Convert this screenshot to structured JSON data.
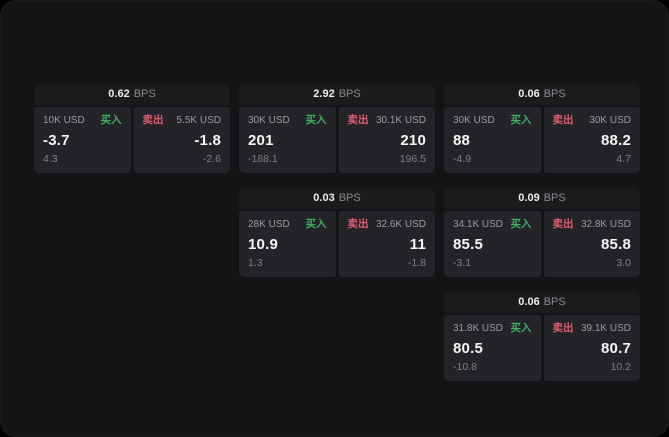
{
  "page": {
    "bps_unit": "BPS"
  },
  "labels": {
    "buy": "买入",
    "sell": "卖出"
  },
  "colors": {
    "buy_green": "#3eae63",
    "sell_red": "#de5c6e",
    "window_background": "#141416",
    "card_header_background": "#1b1b1e",
    "panel_background": "#242428",
    "primary_text": "#f6f6f7",
    "muted_text": "#9b9b9f"
  },
  "cards": [
    {
      "bps": "0.62",
      "buy": {
        "amount": "10K USD",
        "value": "-3.7",
        "sub": "4.3"
      },
      "sell": {
        "amount": "5.5K USD",
        "value": "-1.8",
        "sub": "-2.6"
      }
    },
    {
      "bps": "2.92",
      "buy": {
        "amount": "30K USD",
        "value": "201",
        "sub": "-188.1"
      },
      "sell": {
        "amount": "30.1K USD",
        "value": "210",
        "sub": "196.5"
      }
    },
    {
      "bps": "0.06",
      "buy": {
        "amount": "30K USD",
        "value": "88",
        "sub": "-4.9"
      },
      "sell": {
        "amount": "30K USD",
        "value": "88.2",
        "sub": "4.7"
      }
    },
    {
      "bps": "0.03",
      "buy": {
        "amount": "28K USD",
        "value": "10.9",
        "sub": "1.3"
      },
      "sell": {
        "amount": "32.6K USD",
        "value": "11",
        "sub": "-1.8"
      }
    },
    {
      "bps": "0.09",
      "buy": {
        "amount": "34.1K USD",
        "value": "85.5",
        "sub": "-3.1"
      },
      "sell": {
        "amount": "32.8K USD",
        "value": "85.8",
        "sub": "3.0"
      }
    },
    {
      "bps": "0.06",
      "buy": {
        "amount": "31.8K USD",
        "value": "80.5",
        "sub": "-10.8"
      },
      "sell": {
        "amount": "39.1K USD",
        "value": "80.7",
        "sub": "10.2"
      }
    }
  ]
}
